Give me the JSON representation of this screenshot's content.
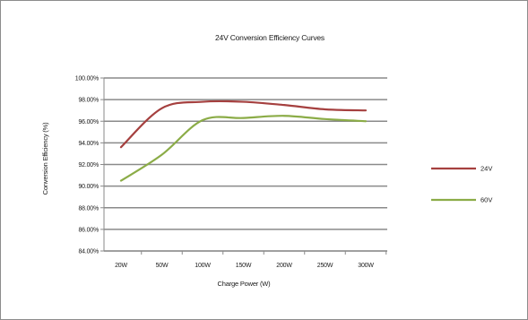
{
  "chart_data": {
    "type": "line",
    "title": "24V Conversion Efficiency Curves",
    "xlabel": "Charge Power (W)",
    "ylabel": "Conversion Efficiency (%)",
    "categories": [
      "20W",
      "50W",
      "100W",
      "150W",
      "200W",
      "250W",
      "300W"
    ],
    "y_ticks": [
      "84.00%",
      "86.00%",
      "88.00%",
      "90.00%",
      "92.00%",
      "94.00%",
      "96.00%",
      "98.00%",
      "100.00%"
    ],
    "ylim": [
      84,
      100
    ],
    "grid": true,
    "legend_position": "right",
    "series": [
      {
        "name": "24V",
        "color": "#a5403f",
        "values": [
          93.6,
          97.2,
          97.8,
          97.8,
          97.5,
          97.1,
          97.0
        ]
      },
      {
        "name": "60V",
        "color": "#8bac47",
        "values": [
          90.5,
          92.9,
          96.1,
          96.3,
          96.5,
          96.2,
          96.0
        ]
      }
    ]
  }
}
